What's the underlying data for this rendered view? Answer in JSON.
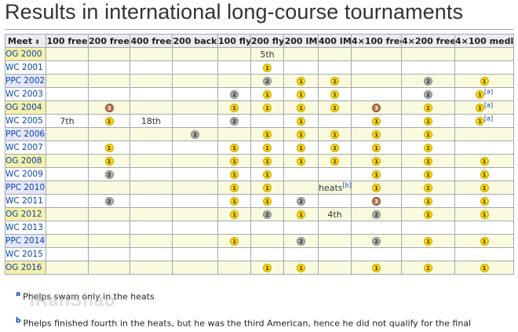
{
  "page": {
    "title": "Results in international long-course tournaments"
  },
  "table": {
    "headers": [
      "Meet",
      "100 free",
      "200 free",
      "400 free",
      "200 back",
      "100 fly",
      "200 fly",
      "200 IM",
      "400 IM",
      "4×100 free",
      "4×200 free",
      "4×100 medley"
    ],
    "sort_icon": "⬍",
    "rows": [
      {
        "meet": "OG 2000",
        "type": "og",
        "cells": [
          "",
          "",
          "",
          "",
          "",
          "5th",
          "",
          "",
          "",
          "",
          ""
        ]
      },
      {
        "meet": "WC 2001",
        "type": "wc",
        "cells": [
          "",
          "",
          "",
          "",
          "",
          "g",
          "",
          "",
          "",
          "",
          ""
        ]
      },
      {
        "meet": "PPC 2002",
        "type": "ppc",
        "cells": [
          "",
          "",
          "",
          "",
          "",
          "s",
          "g",
          "g",
          "",
          "s",
          "g"
        ]
      },
      {
        "meet": "WC 2003",
        "type": "wc",
        "cells": [
          "",
          "",
          "",
          "",
          "s",
          "g",
          "g",
          "g",
          "",
          "s",
          "g[a]"
        ]
      },
      {
        "meet": "OG 2004",
        "type": "og",
        "cells": [
          "",
          "b",
          "",
          "",
          "g",
          "g",
          "g",
          "g",
          "b",
          "g",
          "g[a]"
        ]
      },
      {
        "meet": "WC 2005",
        "type": "wc",
        "cells": [
          "7th",
          "g",
          "18th",
          "",
          "s",
          "",
          "g",
          "",
          "g",
          "g",
          "g[a]"
        ]
      },
      {
        "meet": "PPC 2006",
        "type": "ppc",
        "cells": [
          "",
          "",
          "",
          "s",
          "",
          "g",
          "g",
          "g",
          "g",
          "g",
          ""
        ]
      },
      {
        "meet": "WC 2007",
        "type": "wc",
        "cells": [
          "",
          "g",
          "",
          "",
          "g",
          "g",
          "g",
          "g",
          "g",
          "g",
          ""
        ]
      },
      {
        "meet": "OG 2008",
        "type": "og",
        "cells": [
          "",
          "g",
          "",
          "",
          "g",
          "g",
          "g",
          "g",
          "g",
          "g",
          "g"
        ]
      },
      {
        "meet": "WC 2009",
        "type": "wc",
        "cells": [
          "",
          "s",
          "",
          "",
          "g",
          "g",
          "",
          "",
          "g",
          "g",
          "g"
        ]
      },
      {
        "meet": "PPC 2010",
        "type": "ppc",
        "cells": [
          "",
          "",
          "",
          "",
          "g",
          "g",
          "",
          "heats[b]",
          "g",
          "g",
          "g"
        ]
      },
      {
        "meet": "WC 2011",
        "type": "wc",
        "cells": [
          "",
          "s",
          "",
          "",
          "g",
          "g",
          "s",
          "",
          "b",
          "g",
          "g"
        ]
      },
      {
        "meet": "OG 2012",
        "type": "og",
        "cells": [
          "",
          "",
          "",
          "",
          "g",
          "s",
          "g",
          "4th",
          "s",
          "g",
          "g"
        ]
      },
      {
        "meet": "WC 2013",
        "type": "wc",
        "cells": [
          "",
          "",
          "",
          "",
          "",
          "",
          "",
          "",
          "",
          "",
          ""
        ]
      },
      {
        "meet": "PPC 2014",
        "type": "ppc",
        "cells": [
          "",
          "",
          "",
          "",
          "g",
          "",
          "s",
          "",
          "s",
          "g",
          "g"
        ]
      },
      {
        "meet": "WC 2015",
        "type": "wc",
        "cells": [
          "",
          "",
          "",
          "",
          "",
          "",
          "",
          "",
          "",
          "",
          ""
        ]
      },
      {
        "meet": "OG 2016",
        "type": "og",
        "cells": [
          "",
          "",
          "",
          "",
          "",
          "g",
          "g",
          "",
          "g",
          "g",
          "g"
        ]
      }
    ]
  },
  "medal_text": {
    "g": "1",
    "s": "2",
    "b": "3"
  },
  "colors": {
    "og_bg": "#f6f0a8",
    "ppc_bg": "#e6e6fa",
    "cell_bg": "#fafadf",
    "gold": "#f9d70b",
    "silver": "#aeaeae",
    "bronze": "#b8734a",
    "link": "#0645ad"
  },
  "notes": [
    {
      "letter": "a",
      "text": "Phelps swam only in the heats"
    },
    {
      "letter": "b",
      "text": "Phelps finished fourth in the heats, but he was the third American, hence he did not qualify for the final"
    }
  ],
  "watermark": "iRanShao"
}
